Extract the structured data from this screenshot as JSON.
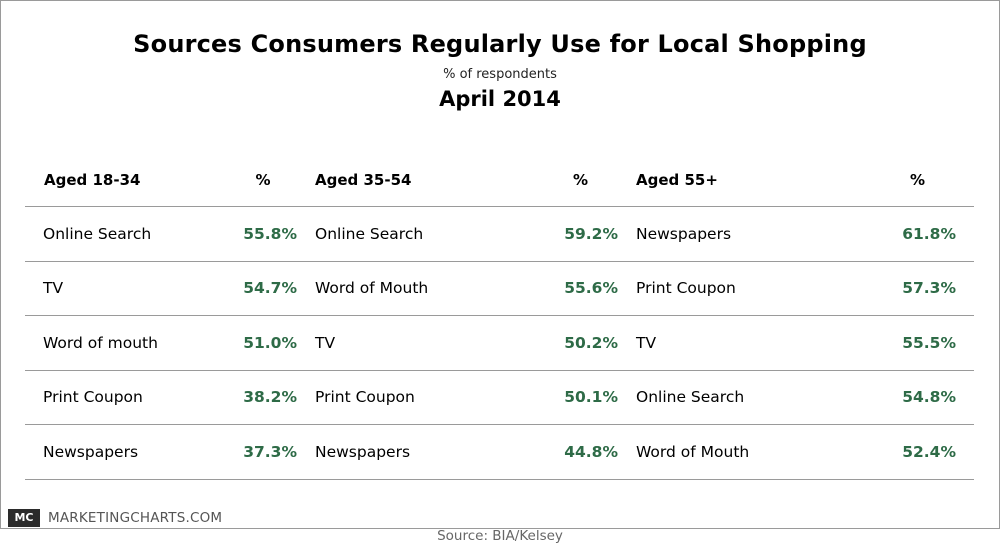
{
  "brand": {
    "logo_text": "MC",
    "name": "MARKETINGCHARTS.COM"
  },
  "chart_data": {
    "type": "table",
    "title": "Sources Consumers Regularly Use for Local Shopping",
    "subtitle": "% of respondents",
    "date": "April 2014",
    "source": "Source:  BIA/Kelsey",
    "groups": [
      {
        "header": "Aged 18-34",
        "pct_header": "%",
        "rows": [
          {
            "label": "Online Search",
            "value": "55.8%"
          },
          {
            "label": "TV",
            "value": "54.7%"
          },
          {
            "label": "Word of mouth",
            "value": "51.0%"
          },
          {
            "label": "Print Coupon",
            "value": "38.2%"
          },
          {
            "label": "Newspapers",
            "value": "37.3%"
          }
        ]
      },
      {
        "header": "Aged 35-54",
        "pct_header": "%",
        "rows": [
          {
            "label": "Online Search",
            "value": "59.2%"
          },
          {
            "label": "Word of Mouth",
            "value": "55.6%"
          },
          {
            "label": "TV",
            "value": "50.2%"
          },
          {
            "label": "Print Coupon",
            "value": "50.1%"
          },
          {
            "label": "Newspapers",
            "value": "44.8%"
          }
        ]
      },
      {
        "header": "Aged 55+",
        "pct_header": "%",
        "rows": [
          {
            "label": "Newspapers",
            "value": "61.8%"
          },
          {
            "label": "Print Coupon",
            "value": "57.3%"
          },
          {
            "label": "TV",
            "value": "55.5%"
          },
          {
            "label": "Online Search",
            "value": "54.8%"
          },
          {
            "label": "Word of Mouth",
            "value": "52.4%"
          }
        ]
      }
    ]
  }
}
